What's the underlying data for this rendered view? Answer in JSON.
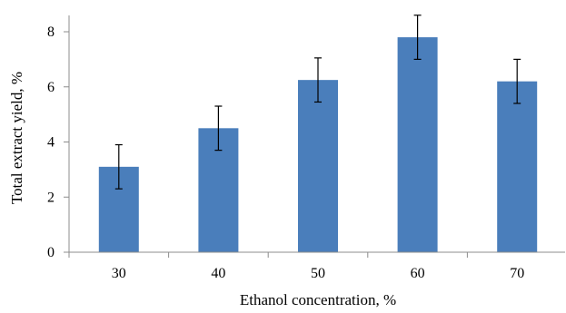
{
  "chart_data": {
    "type": "bar",
    "title": "",
    "xlabel": "Ethanol concentration, %",
    "ylabel": "Total extract yield, %",
    "categories": [
      "30",
      "40",
      "50",
      "60",
      "70"
    ],
    "values": [
      3.1,
      4.5,
      6.25,
      7.8,
      6.2
    ],
    "errors": [
      0.8,
      0.8,
      0.8,
      0.8,
      0.8
    ],
    "ylim": [
      0,
      8
    ],
    "yticks": [
      0,
      2,
      4,
      6,
      8
    ],
    "grid": false,
    "legend": "none",
    "bar_color": "#4a7ebb",
    "error_bar_color": "#000000"
  }
}
